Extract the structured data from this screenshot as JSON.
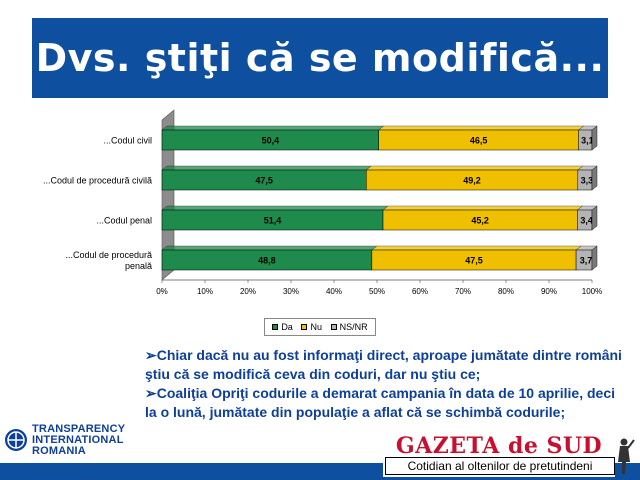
{
  "title": "Dvs. ştiţi că se modifică...",
  "chart_data": {
    "type": "bar",
    "orientation": "horizontal",
    "stacked": "percent",
    "categories": [
      [
        "...Codul civil"
      ],
      [
        "...Codul de procedură civilă"
      ],
      [
        "...Codul penal"
      ],
      [
        "...Codul de procedură",
        "penală"
      ]
    ],
    "series": [
      {
        "name": "Da",
        "values": [
          50.4,
          47.5,
          51.4,
          48.8
        ],
        "labels": [
          "50,4",
          "47,5",
          "51,4",
          "48,8"
        ],
        "color": "#1e8a4b"
      },
      {
        "name": "Nu",
        "values": [
          46.5,
          49.2,
          45.2,
          47.5
        ],
        "labels": [
          "46,5",
          "49,2",
          "45,2",
          "47,5"
        ],
        "color": "#f0c000"
      },
      {
        "name": "NS/NR",
        "values": [
          3.1,
          3.3,
          3.4,
          3.7
        ],
        "labels": [
          "3,1",
          "3,3",
          "3,4",
          "3,7"
        ],
        "color": "#b4b4b4"
      }
    ],
    "xlim": [
      0,
      100
    ],
    "xticks": [
      "0%",
      "10%",
      "20%",
      "30%",
      "40%",
      "50%",
      "60%",
      "70%",
      "80%",
      "90%",
      "100%"
    ],
    "grid": false,
    "legend_position": "bottom"
  },
  "bullets": [
    {
      "mark": "➢",
      "text": "Chiar dacă nu au fost informaţi direct, aproape jumătate dintre români ştiu că se modifică ceva din coduri, dar nu ştiu ce;"
    },
    {
      "mark": "➢",
      "text": "Coaliţia Opriţi codurile a demarat campania în data de 10 aprilie, deci la o lună, jumătate din populaţie a aflat că se schimbă codurile;"
    }
  ],
  "logo_ti": {
    "lines": [
      "TRANSPARENCY",
      "INTERNATIONAL",
      "ROMANIA"
    ]
  },
  "logo_gazeta": {
    "title": "GAZETA de SUD",
    "subtitle": "Cotidian al oltenilor de pretutindeni"
  },
  "colors": {
    "brand_blue": "#0e4fa0",
    "text_blue": "#0e3f99",
    "gazeta_red": "#c8102e"
  }
}
